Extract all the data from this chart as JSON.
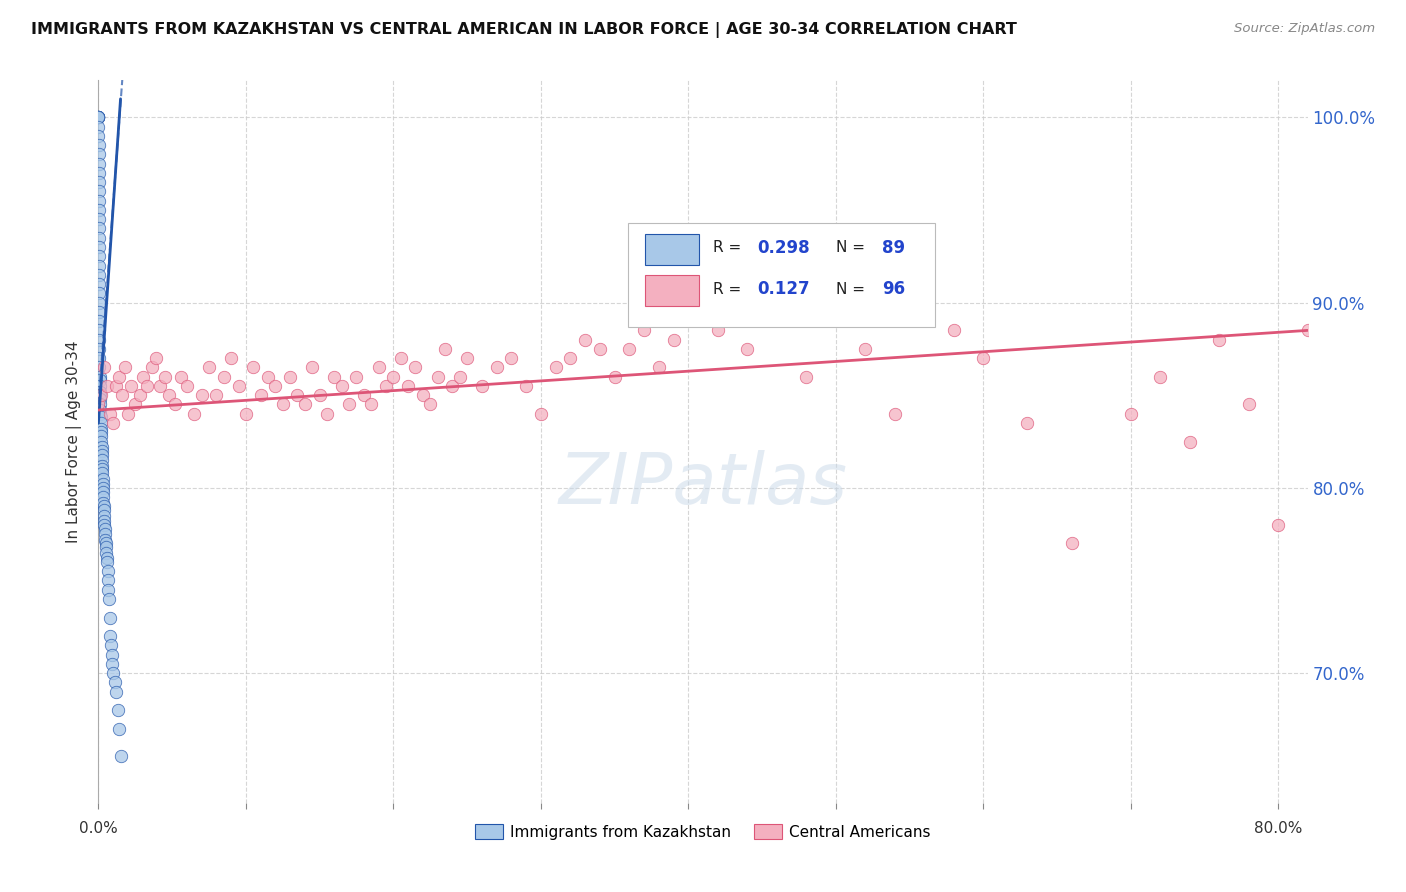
{
  "title": "IMMIGRANTS FROM KAZAKHSTAN VS CENTRAL AMERICAN IN LABOR FORCE | AGE 30-34 CORRELATION CHART",
  "source": "Source: ZipAtlas.com",
  "ylabel": "In Labor Force | Age 30-34",
  "xlim": [
    0.0,
    0.82
  ],
  "ylim": [
    63,
    102
  ],
  "ytick_positions": [
    70,
    80,
    90,
    100
  ],
  "ytick_labels": [
    "70.0%",
    "80.0%",
    "90.0%",
    "100.0%"
  ],
  "color_kaz": "#a8c8e8",
  "color_cam": "#f4b0c0",
  "trendline_kaz_color": "#2255aa",
  "trendline_cam_color": "#dd5577",
  "background_color": "#ffffff",
  "grid_color": "#cccccc",
  "legend_r1": "0.298",
  "legend_n1": "89",
  "legend_r2": "0.127",
  "legend_n2": "96",
  "kaz_x": [
    0.0,
    0.0,
    0.0,
    0.0,
    0.0,
    0.0,
    0.0,
    0.0,
    0.0001,
    0.0001,
    0.0001,
    0.0001,
    0.0001,
    0.0001,
    0.0001,
    0.0002,
    0.0002,
    0.0002,
    0.0002,
    0.0002,
    0.0003,
    0.0003,
    0.0003,
    0.0003,
    0.0004,
    0.0004,
    0.0004,
    0.0005,
    0.0005,
    0.0006,
    0.0006,
    0.0007,
    0.0007,
    0.0008,
    0.0009,
    0.0009,
    0.001,
    0.0011,
    0.0012,
    0.0013,
    0.0013,
    0.0014,
    0.0015,
    0.0016,
    0.0017,
    0.0018,
    0.0019,
    0.002,
    0.0021,
    0.0022,
    0.0023,
    0.0024,
    0.0025,
    0.0026,
    0.0027,
    0.0028,
    0.003,
    0.0031,
    0.0032,
    0.0033,
    0.0034,
    0.0035,
    0.0037,
    0.0038,
    0.004,
    0.0041,
    0.0043,
    0.0045,
    0.0047,
    0.0049,
    0.0051,
    0.0054,
    0.0056,
    0.0059,
    0.0062,
    0.0065,
    0.0068,
    0.0072,
    0.0076,
    0.008,
    0.0085,
    0.009,
    0.0095,
    0.01,
    0.011,
    0.012,
    0.013,
    0.014,
    0.015
  ],
  "kaz_y": [
    100.0,
    100.0,
    100.0,
    100.0,
    100.0,
    100.0,
    99.5,
    99.0,
    98.5,
    98.0,
    97.5,
    97.0,
    96.5,
    96.0,
    95.5,
    95.0,
    94.5,
    94.0,
    93.5,
    93.0,
    92.5,
    92.0,
    91.5,
    91.0,
    90.5,
    90.0,
    89.5,
    89.0,
    88.5,
    88.0,
    87.5,
    87.0,
    86.5,
    86.0,
    85.8,
    85.5,
    85.2,
    85.0,
    84.8,
    84.5,
    84.2,
    84.0,
    83.8,
    83.5,
    83.2,
    83.0,
    82.8,
    82.5,
    82.2,
    82.0,
    81.8,
    81.5,
    81.2,
    81.0,
    80.8,
    80.5,
    80.2,
    80.0,
    79.8,
    79.5,
    79.2,
    79.0,
    78.8,
    78.5,
    78.2,
    78.0,
    77.8,
    77.5,
    77.2,
    77.0,
    76.8,
    76.5,
    76.2,
    76.0,
    75.5,
    75.0,
    74.5,
    74.0,
    73.0,
    72.0,
    71.5,
    71.0,
    70.5,
    70.0,
    69.5,
    69.0,
    68.0,
    67.0,
    65.5
  ],
  "cam_x": [
    0.0,
    0.002,
    0.004,
    0.006,
    0.008,
    0.01,
    0.012,
    0.014,
    0.016,
    0.018,
    0.02,
    0.022,
    0.025,
    0.028,
    0.03,
    0.033,
    0.036,
    0.039,
    0.042,
    0.045,
    0.048,
    0.052,
    0.056,
    0.06,
    0.065,
    0.07,
    0.075,
    0.08,
    0.085,
    0.09,
    0.095,
    0.1,
    0.105,
    0.11,
    0.115,
    0.12,
    0.125,
    0.13,
    0.135,
    0.14,
    0.145,
    0.15,
    0.155,
    0.16,
    0.165,
    0.17,
    0.175,
    0.18,
    0.185,
    0.19,
    0.195,
    0.2,
    0.205,
    0.21,
    0.215,
    0.22,
    0.225,
    0.23,
    0.235,
    0.24,
    0.245,
    0.25,
    0.26,
    0.27,
    0.28,
    0.29,
    0.3,
    0.31,
    0.32,
    0.33,
    0.34,
    0.35,
    0.36,
    0.37,
    0.38,
    0.39,
    0.4,
    0.42,
    0.44,
    0.46,
    0.48,
    0.5,
    0.52,
    0.54,
    0.56,
    0.58,
    0.6,
    0.63,
    0.66,
    0.7,
    0.72,
    0.74,
    0.76,
    0.78,
    0.8,
    0.82
  ],
  "cam_y": [
    84.5,
    85.0,
    86.5,
    85.5,
    84.0,
    83.5,
    85.5,
    86.0,
    85.0,
    86.5,
    84.0,
    85.5,
    84.5,
    85.0,
    86.0,
    85.5,
    86.5,
    87.0,
    85.5,
    86.0,
    85.0,
    84.5,
    86.0,
    85.5,
    84.0,
    85.0,
    86.5,
    85.0,
    86.0,
    87.0,
    85.5,
    84.0,
    86.5,
    85.0,
    86.0,
    85.5,
    84.5,
    86.0,
    85.0,
    84.5,
    86.5,
    85.0,
    84.0,
    86.0,
    85.5,
    84.5,
    86.0,
    85.0,
    84.5,
    86.5,
    85.5,
    86.0,
    87.0,
    85.5,
    86.5,
    85.0,
    84.5,
    86.0,
    87.5,
    85.5,
    86.0,
    87.0,
    85.5,
    86.5,
    87.0,
    85.5,
    84.0,
    86.5,
    87.0,
    88.0,
    87.5,
    86.0,
    87.5,
    88.5,
    86.5,
    88.0,
    91.5,
    88.5,
    87.5,
    90.0,
    86.0,
    91.0,
    87.5,
    84.0,
    90.0,
    88.5,
    87.0,
    83.5,
    77.0,
    84.0,
    86.0,
    82.5,
    88.0,
    84.5,
    78.0,
    88.5
  ],
  "kaz_trendline_x": [
    0.0,
    0.015
  ],
  "kaz_trendline_y": [
    83.5,
    101.0
  ],
  "cam_trendline_x": [
    0.0,
    0.82
  ],
  "cam_trendline_y": [
    84.2,
    88.5
  ]
}
